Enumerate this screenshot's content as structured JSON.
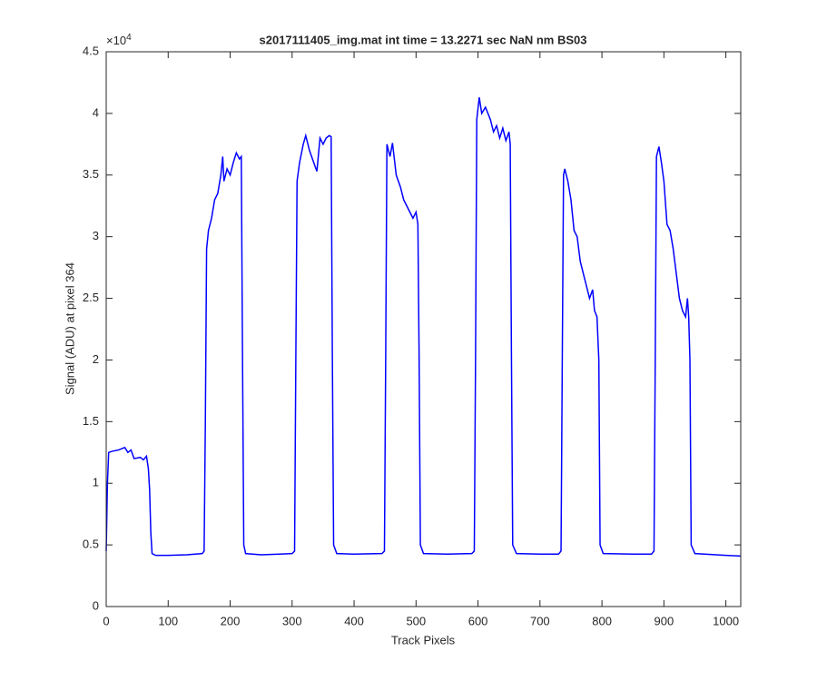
{
  "chart_data": {
    "type": "line",
    "title": "s2017111405_img.mat int time = 13.2271 sec  NaN nm BS03",
    "x_label": "Track Pixels",
    "y_label": "Signal (ADU) at pixel 364",
    "y_multiplier": {
      "base": "×10",
      "exponent": "4"
    },
    "xlim": [
      0,
      1024
    ],
    "xticks": [
      0,
      100,
      200,
      300,
      400,
      500,
      600,
      700,
      800,
      900,
      1000
    ],
    "ylim": [
      0,
      45000
    ],
    "yticks": [
      0,
      {
        "value": 5000,
        "label": "0.5"
      },
      {
        "value": 10000,
        "label": "1"
      },
      {
        "value": 15000,
        "label": "1.5"
      },
      {
        "value": 20000,
        "label": "2"
      },
      {
        "value": 25000,
        "label": "2.5"
      },
      {
        "value": 30000,
        "label": "3"
      },
      {
        "value": 35000,
        "label": "3.5"
      },
      {
        "value": 40000,
        "label": "4"
      },
      {
        "value": 45000,
        "label": "4.5"
      }
    ],
    "grid": false,
    "series": [
      {
        "color": "#0000ff",
        "x": [
          0,
          2,
          4,
          10,
          20,
          30,
          35,
          40,
          45,
          55,
          60,
          65,
          68,
          70,
          72,
          74,
          80,
          100,
          130,
          155,
          158,
          160,
          162,
          165,
          170,
          175,
          180,
          185,
          188,
          190,
          195,
          200,
          205,
          210,
          215,
          218,
          220,
          222,
          225,
          250,
          280,
          300,
          304,
          306,
          308,
          312,
          318,
          322,
          328,
          335,
          340,
          345,
          350,
          355,
          360,
          363,
          365,
          367,
          372,
          400,
          445,
          449,
          451,
          453,
          458,
          462,
          468,
          475,
          480,
          490,
          495,
          500,
          503,
          505,
          507,
          512,
          550,
          590,
          594,
          596,
          598,
          602,
          606,
          612,
          620,
          625,
          630,
          635,
          640,
          645,
          650,
          652,
          654,
          656,
          662,
          700,
          730,
          734,
          736,
          738,
          740,
          745,
          750,
          755,
          760,
          765,
          770,
          775,
          780,
          785,
          788,
          792,
          795,
          797,
          802,
          850,
          880,
          884,
          886,
          888,
          892,
          896,
          900,
          905,
          910,
          915,
          920,
          925,
          930,
          935,
          938,
          940,
          942,
          944,
          950,
          1000,
          1024
        ],
        "values": [
          4500,
          10000,
          12500,
          12600,
          12700,
          12900,
          12500,
          12700,
          12000,
          12100,
          11900,
          12200,
          11200,
          9500,
          6000,
          4300,
          4150,
          4150,
          4200,
          4300,
          4500,
          15000,
          29000,
          30500,
          31500,
          33000,
          33500,
          35000,
          36500,
          34500,
          35500,
          35000,
          36000,
          36800,
          36300,
          36500,
          20000,
          5000,
          4300,
          4200,
          4250,
          4300,
          4500,
          20000,
          34500,
          36000,
          37500,
          38200,
          37000,
          36000,
          35300,
          38000,
          37500,
          38000,
          38200,
          38100,
          20000,
          5000,
          4300,
          4250,
          4300,
          4500,
          20000,
          37500,
          36500,
          37600,
          35000,
          34000,
          33000,
          32000,
          31500,
          32000,
          31000,
          20000,
          5000,
          4300,
          4250,
          4300,
          4500,
          20000,
          39500,
          41300,
          40000,
          40500,
          39500,
          38500,
          39000,
          38000,
          38800,
          37800,
          38500,
          37500,
          20000,
          5000,
          4300,
          4250,
          4250,
          4500,
          20000,
          35000,
          35500,
          34500,
          33000,
          30500,
          30000,
          28000,
          27000,
          26000,
          25000,
          25700,
          24000,
          23500,
          20000,
          5000,
          4300,
          4250,
          4250,
          4500,
          20000,
          36500,
          37300,
          36000,
          34500,
          31000,
          30500,
          29000,
          27000,
          25000,
          24000,
          23500,
          25000,
          23500,
          20000,
          5000,
          4300,
          4150,
          4100
        ]
      }
    ]
  }
}
